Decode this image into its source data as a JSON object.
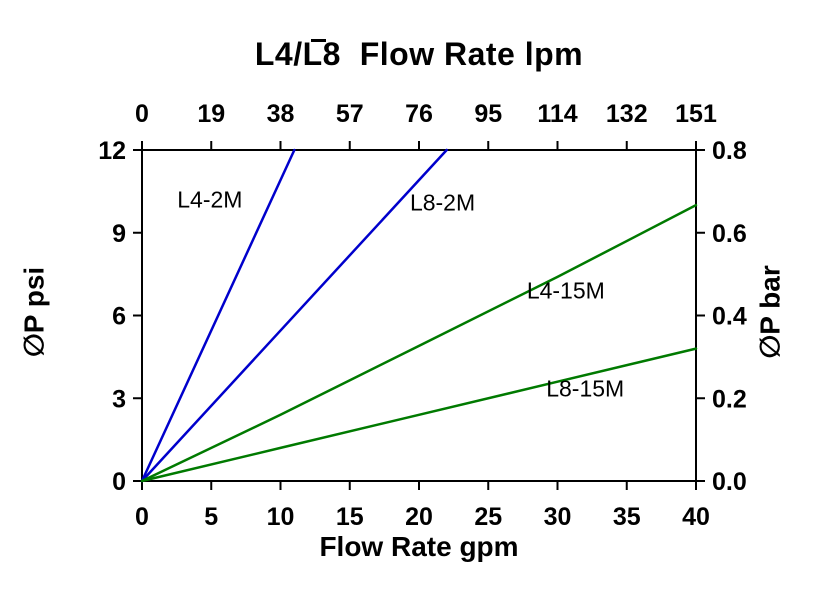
{
  "chart_data": {
    "type": "line",
    "title": "L4/L8  Flow Rate lpm",
    "xlabel": "Flow Rate gpm",
    "ylabel": "∅P psi",
    "y2label": "∅P bar",
    "xlim": [
      0,
      40
    ],
    "ylim": [
      0,
      12
    ],
    "y2lim": [
      0,
      0.8
    ],
    "grid": false,
    "legend": "inline-labels",
    "frame_color": "#000000",
    "x_ticks": {
      "values": [
        0,
        5,
        10,
        15,
        20,
        25,
        30,
        35,
        40
      ],
      "labels": [
        "0",
        "5",
        "10",
        "15",
        "20",
        "25",
        "30",
        "35",
        "40"
      ]
    },
    "x2_ticks": {
      "values": [
        0,
        5,
        10,
        15,
        20,
        25,
        30,
        35,
        40
      ],
      "labels": [
        "0",
        "19",
        "38",
        "57",
        "76",
        "95",
        "114",
        "132",
        "151"
      ]
    },
    "y_ticks": {
      "values": [
        0,
        3,
        6,
        9,
        12
      ],
      "labels": [
        "0",
        "3",
        "6",
        "9",
        "12"
      ]
    },
    "y2_ticks": {
      "values": [
        0,
        0.2,
        0.4,
        0.6,
        0.8
      ],
      "labels": [
        "0.0",
        "0.2",
        "0.4",
        "0.6",
        "0.8"
      ]
    },
    "series": [
      {
        "name": "L4-2M",
        "color": "#0000cc",
        "axis": "left",
        "points": [
          [
            0,
            0
          ],
          [
            11,
            12
          ]
        ],
        "label_at": [
          4.9,
          10.2
        ]
      },
      {
        "name": "L8-2M",
        "color": "#0000cc",
        "axis": "left",
        "points": [
          [
            0,
            0
          ],
          [
            22,
            12
          ]
        ],
        "label_at": [
          21.7,
          10.1
        ]
      },
      {
        "name": "L4-15M",
        "color": "#007a00",
        "axis": "left",
        "points": [
          [
            0,
            0
          ],
          [
            10,
            2.4
          ],
          [
            20,
            4.9
          ],
          [
            30,
            7.4
          ],
          [
            40,
            10.0
          ]
        ],
        "label_at": [
          30.6,
          6.9
        ]
      },
      {
        "name": "L8-15M",
        "color": "#007a00",
        "axis": "left",
        "points": [
          [
            0,
            0
          ],
          [
            10,
            1.2
          ],
          [
            20,
            2.4
          ],
          [
            30,
            3.6
          ],
          [
            40,
            4.8
          ]
        ],
        "label_at": [
          32.0,
          3.35
        ]
      }
    ]
  }
}
